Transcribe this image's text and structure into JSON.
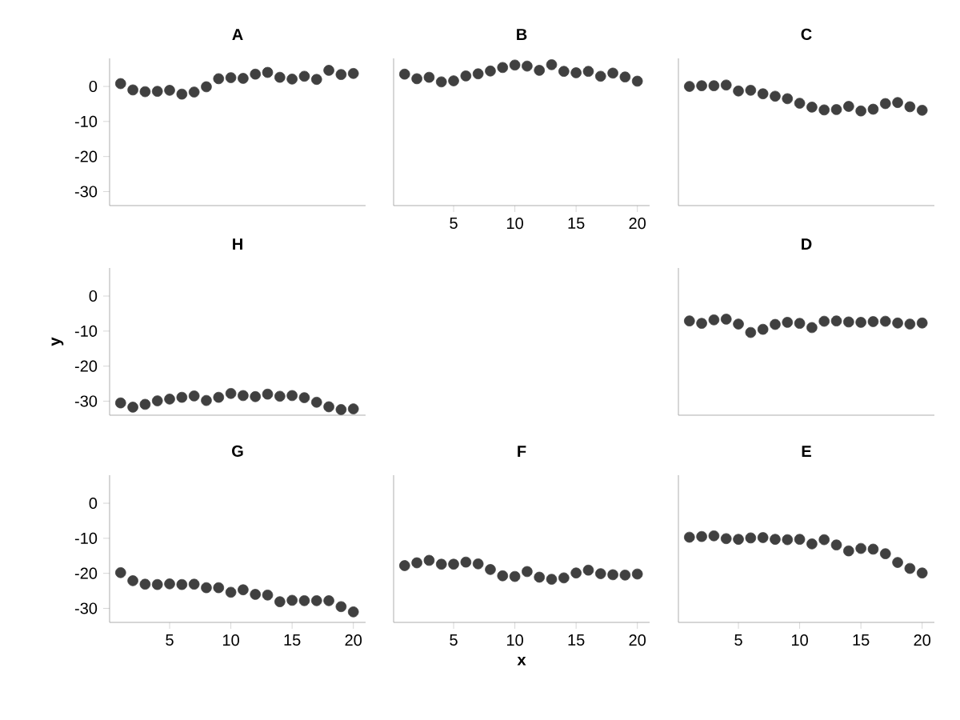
{
  "chart_data": [
    {
      "type": "scatter",
      "title": "A",
      "x": [
        1,
        2,
        3,
        4,
        5,
        6,
        7,
        8,
        9,
        10,
        11,
        12,
        13,
        14,
        15,
        16,
        17,
        18,
        19,
        20
      ],
      "values": [
        0.8,
        -1,
        -1.5,
        -1.4,
        -1.1,
        -2.2,
        -1.6,
        -0.1,
        2.2,
        2.5,
        2.3,
        3.5,
        4,
        2.6,
        2.1,
        2.9,
        2,
        4.6,
        3.4,
        3.7
      ],
      "color": "#404040",
      "marker": "circle",
      "xlim": [
        0.1,
        21
      ],
      "ylim": [
        -34,
        8
      ],
      "xticks": [
        5,
        10,
        15,
        20
      ],
      "yticks": [
        -30,
        -20,
        -10,
        0
      ],
      "tick_labels": "y"
    },
    {
      "type": "scatter",
      "title": "B",
      "x": [
        1,
        2,
        3,
        4,
        5,
        6,
        7,
        8,
        9,
        10,
        11,
        12,
        13,
        14,
        15,
        16,
        17,
        18,
        19,
        20
      ],
      "values": [
        3.5,
        2.2,
        2.6,
        1.3,
        1.6,
        3,
        3.6,
        4.4,
        5.4,
        6.1,
        5.8,
        4.6,
        6.2,
        4.3,
        3.9,
        4.3,
        2.9,
        3.8,
        2.7,
        1.5
      ],
      "color": "#404040",
      "marker": "circle",
      "xlim": [
        0.1,
        21
      ],
      "ylim": [
        -34,
        8
      ],
      "xticks": [
        5,
        10,
        15,
        20
      ],
      "yticks": [
        -30,
        -20,
        -10,
        0
      ],
      "tick_labels": "x"
    },
    {
      "type": "scatter",
      "title": "C",
      "x": [
        1,
        2,
        3,
        4,
        5,
        6,
        7,
        8,
        9,
        10,
        11,
        12,
        13,
        14,
        15,
        16,
        17,
        18,
        19,
        20
      ],
      "values": [
        0,
        0.2,
        0.2,
        0.4,
        -1.3,
        -1.1,
        -2.1,
        -2.8,
        -3.5,
        -4.8,
        -5.9,
        -6.7,
        -6.6,
        -5.7,
        -7,
        -6.5,
        -4.9,
        -4.6,
        -5.8,
        -6.8
      ],
      "color": "#404040",
      "marker": "circle",
      "xlim": [
        0.1,
        21
      ],
      "ylim": [
        -34,
        8
      ],
      "xticks": [
        5,
        10,
        15,
        20
      ],
      "yticks": [
        -30,
        -20,
        -10,
        0
      ],
      "tick_labels": false
    },
    {
      "type": "scatter",
      "title": "H",
      "ylabel": "y",
      "x": [
        1,
        2,
        3,
        4,
        5,
        6,
        7,
        8,
        9,
        10,
        11,
        12,
        13,
        14,
        15,
        16,
        17,
        18,
        19,
        20
      ],
      "values": [
        -30.5,
        -31.7,
        -30.9,
        -29.9,
        -29.4,
        -28.9,
        -28.5,
        -29.8,
        -28.9,
        -27.8,
        -28.4,
        -28.7,
        -28,
        -28.6,
        -28.4,
        -29,
        -30.3,
        -31.6,
        -32.4,
        -32.2
      ],
      "color": "#404040",
      "marker": "circle",
      "xlim": [
        0.1,
        21
      ],
      "ylim": [
        -34,
        8
      ],
      "xticks": [
        5,
        10,
        15,
        20
      ],
      "yticks": [
        -30,
        -20,
        -10,
        0
      ],
      "tick_labels": "y"
    },
    {
      "type": "scatter",
      "title": "D",
      "x": [
        1,
        2,
        3,
        4,
        5,
        6,
        7,
        8,
        9,
        10,
        11,
        12,
        13,
        14,
        15,
        16,
        17,
        18,
        19,
        20
      ],
      "values": [
        -7.1,
        -7.8,
        -6.8,
        -6.6,
        -8,
        -10.4,
        -9.5,
        -8.1,
        -7.5,
        -7.8,
        -9,
        -7.2,
        -7.1,
        -7.4,
        -7.5,
        -7.3,
        -7.2,
        -7.7,
        -8,
        -7.7
      ],
      "color": "#404040",
      "marker": "circle",
      "xlim": [
        0.1,
        21
      ],
      "ylim": [
        -34,
        8
      ],
      "xticks": [
        5,
        10,
        15,
        20
      ],
      "yticks": [
        -30,
        -20,
        -10,
        0
      ],
      "tick_labels": false
    },
    {
      "type": "scatter",
      "title": "G",
      "x": [
        1,
        2,
        3,
        4,
        5,
        6,
        7,
        8,
        9,
        10,
        11,
        12,
        13,
        14,
        15,
        16,
        17,
        18,
        19,
        20
      ],
      "values": [
        -19.8,
        -22.1,
        -23.1,
        -23.2,
        -23,
        -23.2,
        -23.1,
        -24.1,
        -24.1,
        -25.4,
        -24.7,
        -26,
        -26.2,
        -28.1,
        -27.7,
        -27.8,
        -27.8,
        -27.8,
        -29.5,
        -31
      ],
      "color": "#404040",
      "marker": "circle",
      "xlim": [
        0.1,
        21
      ],
      "ylim": [
        -34,
        8
      ],
      "xticks": [
        5,
        10,
        15,
        20
      ],
      "yticks": [
        -30,
        -20,
        -10,
        0
      ]
    },
    {
      "type": "scatter",
      "title": "F",
      "xlabel": "x",
      "x": [
        1,
        2,
        3,
        4,
        5,
        6,
        7,
        8,
        9,
        10,
        11,
        12,
        13,
        14,
        15,
        16,
        17,
        18,
        19,
        20
      ],
      "values": [
        -17.8,
        -17,
        -16.3,
        -17.4,
        -17.4,
        -16.8,
        -17.3,
        -18.9,
        -20.7,
        -20.9,
        -19.5,
        -21.1,
        -21.7,
        -21.3,
        -19.9,
        -19.1,
        -20.1,
        -20.4,
        -20.5,
        -20.2
      ],
      "color": "#404040",
      "marker": "circle",
      "xlim": [
        0.1,
        21
      ],
      "ylim": [
        -34,
        8
      ],
      "xticks": [
        5,
        10,
        15,
        20
      ],
      "yticks": [
        -30,
        -20,
        -10,
        0
      ],
      "tick_labels": "x"
    },
    {
      "type": "scatter",
      "title": "E",
      "x": [
        1,
        2,
        3,
        4,
        5,
        6,
        7,
        8,
        9,
        10,
        11,
        12,
        13,
        14,
        15,
        16,
        17,
        18,
        19,
        20
      ],
      "values": [
        -9.7,
        -9.5,
        -9.3,
        -10.1,
        -10.3,
        -9.9,
        -9.8,
        -10.3,
        -10.4,
        -10.3,
        -11.6,
        -10.4,
        -11.9,
        -13.6,
        -12.9,
        -13.1,
        -14.4,
        -16.9,
        -18.6,
        -19.9
      ],
      "color": "#404040",
      "marker": "circle",
      "xlim": [
        0.1,
        21
      ],
      "ylim": [
        -34,
        8
      ],
      "xticks": [
        5,
        10,
        15,
        20
      ],
      "yticks": [
        -30,
        -20,
        -10,
        0
      ],
      "tick_labels": "x"
    }
  ]
}
